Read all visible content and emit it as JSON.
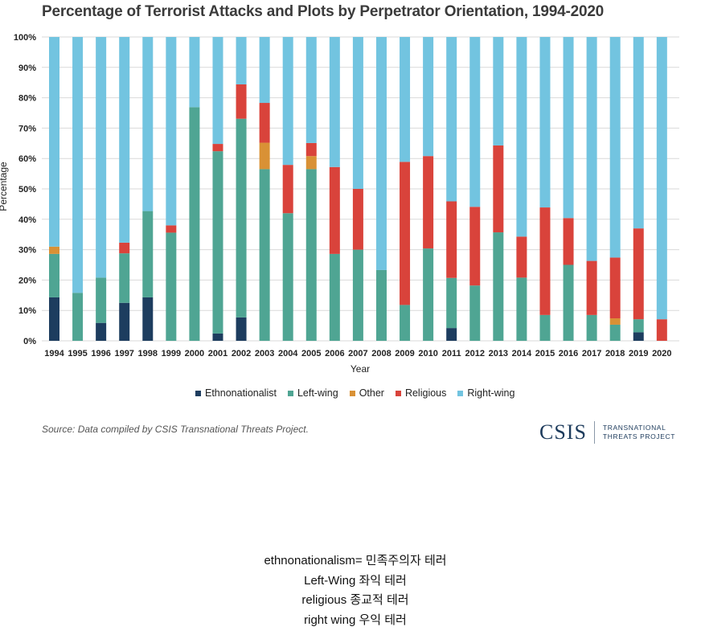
{
  "chart_data": {
    "type": "stacked-bar",
    "title": "Percentage of Terrorist Attacks and Plots by Perpetrator Orientation, 1994-2020",
    "xlabel": "Year",
    "ylabel": "Percentage",
    "ylim": [
      0,
      100
    ],
    "yticks": [
      "0%",
      "10%",
      "20%",
      "30%",
      "40%",
      "50%",
      "60%",
      "70%",
      "80%",
      "90%",
      "100%"
    ],
    "grid": true,
    "legend_position": "bottom",
    "categories": [
      "1994",
      "1995",
      "1996",
      "1997",
      "1998",
      "1999",
      "2000",
      "2001",
      "2002",
      "2003",
      "2004",
      "2005",
      "2006",
      "2007",
      "2008",
      "2009",
      "2010",
      "2011",
      "2012",
      "2013",
      "2014",
      "2015",
      "2016",
      "2017",
      "2018",
      "2019",
      "2020"
    ],
    "series": [
      {
        "name": "Ethnonationalist",
        "color": "#1d3d5f",
        "values": [
          14.3,
          0,
          5.9,
          12.5,
          14.3,
          0,
          0,
          2.4,
          7.7,
          0,
          0,
          0,
          0,
          0,
          0,
          0,
          0,
          4.2,
          0,
          0,
          0,
          0,
          0,
          0,
          0,
          2.8,
          0
        ]
      },
      {
        "name": "Left-wing",
        "color": "#4fa593",
        "values": [
          14.3,
          15.8,
          14.9,
          16.3,
          28.4,
          35.6,
          76.9,
          60.0,
          65.4,
          56.5,
          42.0,
          56.5,
          28.6,
          30.0,
          23.3,
          11.8,
          30.4,
          16.5,
          18.2,
          35.7,
          20.8,
          8.5,
          25.0,
          8.5,
          5.3,
          4.3,
          0
        ]
      },
      {
        "name": "Other",
        "color": "#d99135",
        "values": [
          2.4,
          0,
          0,
          0,
          0,
          0,
          0,
          0,
          0,
          8.7,
          0,
          4.3,
          0,
          0,
          0,
          0,
          0,
          0,
          0,
          0,
          0,
          0,
          0,
          0,
          2.1,
          0,
          0
        ]
      },
      {
        "name": "Religious",
        "color": "#d9433b",
        "values": [
          0,
          0,
          0,
          3.5,
          0,
          2.4,
          0,
          2.4,
          11.3,
          13.1,
          15.9,
          4.3,
          28.6,
          20.0,
          0,
          47.1,
          30.4,
          25.2,
          25.9,
          28.6,
          13.5,
          35.4,
          15.4,
          17.8,
          20.0,
          29.9,
          7.1
        ]
      },
      {
        "name": "Right-wing",
        "color": "#72c4e0",
        "values": [
          69.0,
          84.2,
          79.2,
          67.7,
          57.3,
          62.0,
          23.1,
          35.2,
          15.6,
          21.7,
          42.1,
          34.9,
          42.8,
          50.0,
          76.7,
          41.1,
          39.2,
          54.1,
          55.9,
          35.7,
          65.7,
          56.1,
          59.6,
          73.7,
          72.6,
          63.0,
          92.9
        ]
      }
    ]
  },
  "source": "Source: Data compiled by CSIS Transnational Threats Project.",
  "logo": {
    "main": "CSIS",
    "line1": "TRANSNATIONAL",
    "line2": "THREATS PROJECT"
  },
  "notes": [
    "ethnonationalism=  민족주의자 테러",
    "Left-Wing 좌익 테러",
    "religious 종교적 테러",
    "right wing 우익 테러"
  ]
}
